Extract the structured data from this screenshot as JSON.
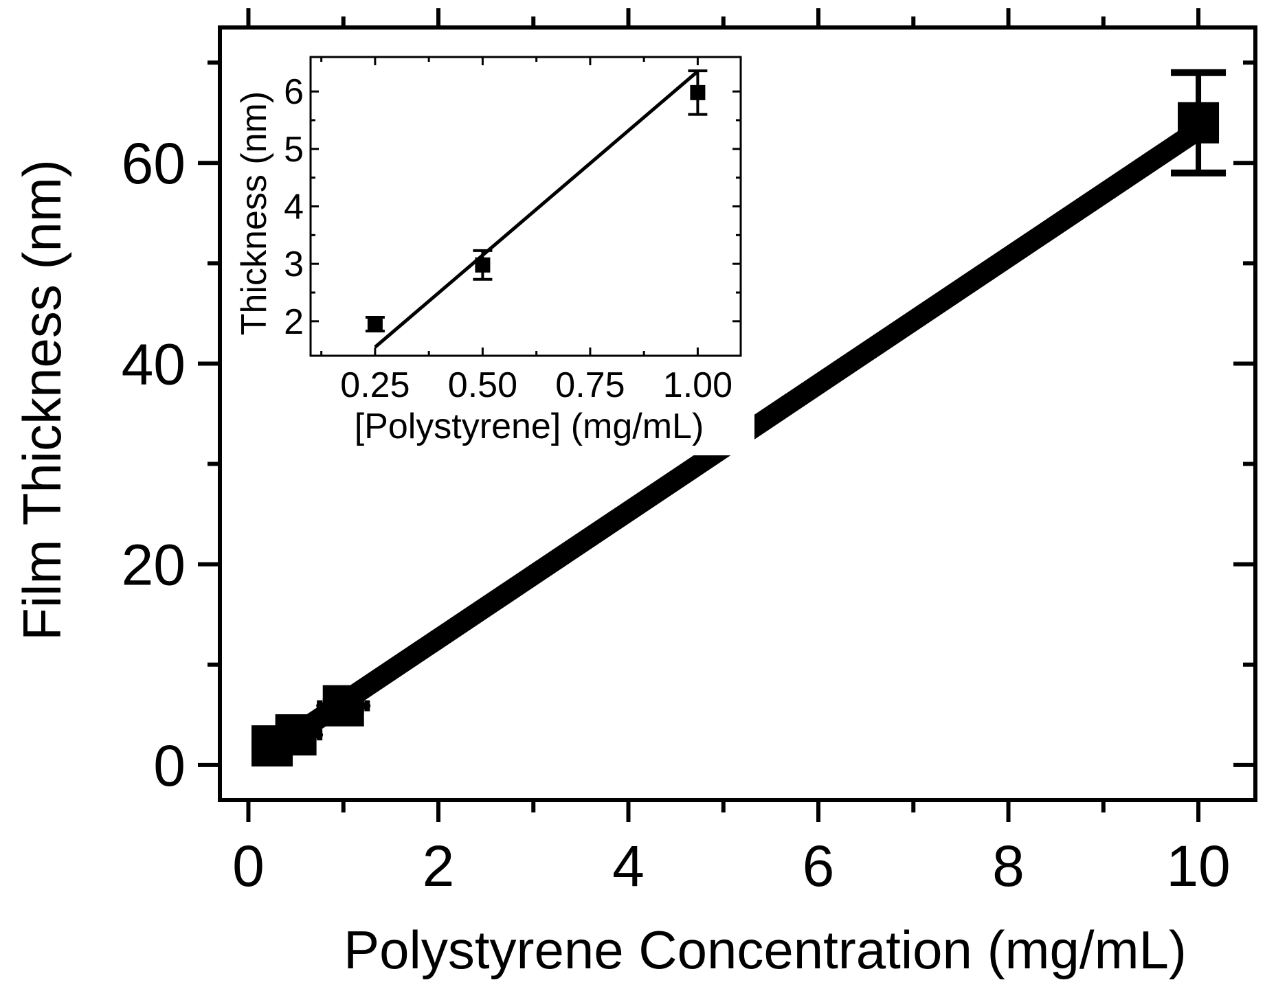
{
  "chart_data": [
    {
      "id": "main",
      "type": "scatter",
      "xlabel": "Polystyrene Concentration (mg/mL)",
      "ylabel": "Film Thickness (nm)",
      "xlim": [
        -0.3,
        10.6
      ],
      "ylim": [
        -3.5,
        73.5
      ],
      "xticks": [
        0,
        2,
        4,
        6,
        8,
        10
      ],
      "yticks": [
        0,
        20,
        40,
        60
      ],
      "grid": false,
      "series": [
        {
          "points": [
            {
              "x": 0.25,
              "y": 1.9,
              "xerr": 0.15,
              "yerr": 0.3
            },
            {
              "x": 0.5,
              "y": 3.0,
              "xerr": 0.25,
              "yerr": 0.3
            },
            {
              "x": 1.0,
              "y": 5.9,
              "xerr": 0.25,
              "yerr": 0.4
            },
            {
              "x": 10.0,
              "y": 64.0,
              "xerr": 0.05,
              "yerr": 5.0
            }
          ],
          "fit_line": {
            "x": [
              0.25,
              10.0
            ],
            "y": [
              1.5,
              63.3
            ]
          }
        }
      ]
    },
    {
      "id": "inset",
      "type": "scatter",
      "xlabel": "[Polystyrene] (mg/mL)",
      "ylabel": "Thickness (nm)",
      "xlim": [
        0.1,
        1.1
      ],
      "ylim": [
        1.4,
        6.6
      ],
      "xticks": [
        "0.25",
        "0.50",
        "0.75",
        "1.00"
      ],
      "yticks": [
        2,
        3,
        4,
        5,
        6
      ],
      "grid": false,
      "series": [
        {
          "points": [
            {
              "x": 0.25,
              "y": 1.95,
              "yerr": 0.12
            },
            {
              "x": 0.5,
              "y": 2.98,
              "yerr": 0.25
            },
            {
              "x": 1.0,
              "y": 5.98,
              "yerr": 0.38
            }
          ],
          "fit_line": {
            "x": [
              0.25,
              1.0
            ],
            "y": [
              1.55,
              6.35
            ]
          }
        }
      ]
    }
  ]
}
